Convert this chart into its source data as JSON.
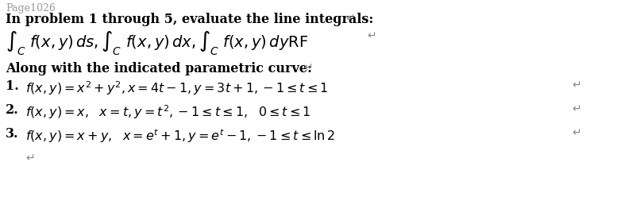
{
  "background_color": "#ffffff",
  "page_header": {
    "text": "Page1026",
    "color": "#999999",
    "fontsize": 9
  },
  "line1": {
    "text": "In problem 1 through 5, evaluate the line integrals:",
    "fontsize": 11.5,
    "color": "#000000"
  },
  "line2": {
    "text": "$\\int_C^{\\quad} f(x,y)\\,ds,\\int_C^{\\quad} f(x,y)\\,dx,\\int_C^{\\quad} f(x,y)\\,dy\\mathrm{RF}$",
    "fontsize": 14,
    "color": "#000000"
  },
  "line3": {
    "text": "Along with the indicated parametric curve:",
    "fontsize": 11.5,
    "color": "#000000"
  },
  "items": [
    {
      "num": "1.",
      "text": "$f(x,y) = x^2 + y^2, x = 4t-1, y = 3t+1, -1 \\leq t \\leq 1$",
      "fontsize": 11.5,
      "color": "#000000"
    },
    {
      "num": "2.",
      "text": "$f(x,y) = x,\\ \\ x = t, y = t^2, -1 \\leq t \\leq 1,\\ \\ 0 \\leq t \\leq 1$",
      "fontsize": 11.5,
      "color": "#000000"
    },
    {
      "num": "3.",
      "text": "$f(x,y) = x+y,\\ \\ x = e^t+1, y = e^t-1, -1 \\leq t \\leq \\ln 2$",
      "fontsize": 11.5,
      "color": "#000000"
    }
  ],
  "return_arrow_color": "#888888",
  "fig_width": 8.12,
  "fig_height": 2.48,
  "dpi": 100
}
